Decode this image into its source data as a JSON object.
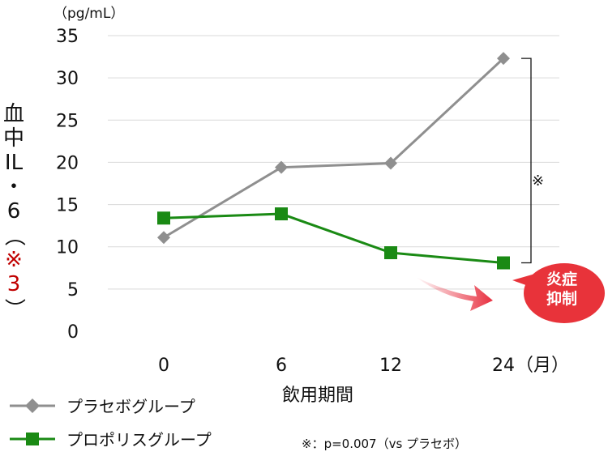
{
  "chart_data": {
    "type": "line",
    "unit_label": "（pg/mL）",
    "ylabel_parts": [
      "血",
      "中",
      "IL",
      "・",
      "6",
      "（",
      "※",
      "3",
      "）"
    ],
    "ylim": [
      0,
      35
    ],
    "yticks": [
      "0",
      "5",
      "10",
      "15",
      "20",
      "25",
      "30",
      "35"
    ],
    "ytick_values": [
      0,
      5,
      10,
      15,
      20,
      25,
      30,
      35
    ],
    "categories": [
      "0",
      "6",
      "12",
      "24"
    ],
    "category_suffix": "（月）",
    "xlabel": "飲用期間",
    "grid": true,
    "legend_position": "bottom-left",
    "series": [
      {
        "name": "プラセボグループ",
        "values": [
          11.1,
          19.4,
          19.9,
          32.3
        ],
        "color": "#8f8f8f",
        "marker": "diamond"
      },
      {
        "name": "プロポリスグループ",
        "values": [
          13.4,
          13.9,
          9.3,
          8.1
        ],
        "color": "#1a8a14",
        "marker": "square"
      }
    ],
    "significance_mark": "※",
    "footnote": "※：p=0.007（vs プラセボ）",
    "callout": [
      "炎症",
      "抑制"
    ],
    "callout_color": "#e8333a"
  }
}
